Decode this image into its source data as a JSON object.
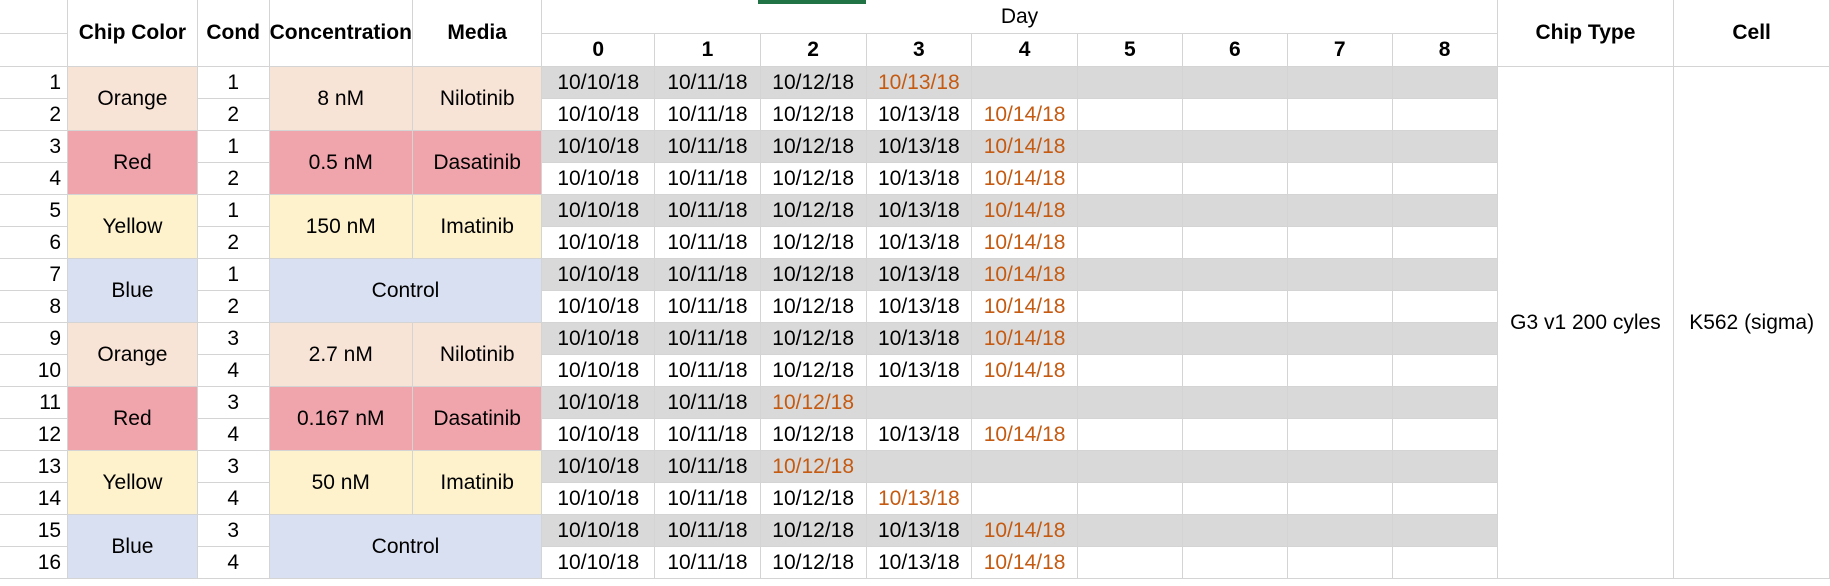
{
  "headers": {
    "chip_color": "Chip Color",
    "cond": "Cond",
    "concentration": "Concentration",
    "media": "Media",
    "day": "Day",
    "day_numbers": [
      "0",
      "1",
      "2",
      "3",
      "4",
      "5",
      "6",
      "7",
      "8"
    ],
    "chip_type": "Chip Type",
    "cell": "Cell"
  },
  "groups": [
    {
      "chip_color": "Orange",
      "color_class": "orange",
      "concentration": "8 nM",
      "media": "Nilotinib",
      "control": false
    },
    {
      "chip_color": "Red",
      "color_class": "red",
      "concentration": "0.5 nM",
      "media": "Dasatinib",
      "control": false
    },
    {
      "chip_color": "Yellow",
      "color_class": "yellow",
      "concentration": "150 nM",
      "media": "Imatinib",
      "control": false
    },
    {
      "chip_color": "Blue",
      "color_class": "blue",
      "concentration": "",
      "media": "Control",
      "control": true
    },
    {
      "chip_color": "Orange",
      "color_class": "orange",
      "concentration": "2.7 nM",
      "media": "Nilotinib",
      "control": false
    },
    {
      "chip_color": "Red",
      "color_class": "red",
      "concentration": "0.167 nM",
      "media": "Dasatinib",
      "control": false
    },
    {
      "chip_color": "Yellow",
      "color_class": "yellow",
      "concentration": "50 nM",
      "media": "Imatinib",
      "control": false
    },
    {
      "chip_color": "Blue",
      "color_class": "blue",
      "concentration": "",
      "media": "Control",
      "control": true
    }
  ],
  "rows": [
    {
      "num": "1",
      "cond": "1",
      "dates": [
        "10/10/18",
        "10/11/18",
        "10/12/18",
        "10/13/18"
      ]
    },
    {
      "num": "2",
      "cond": "2",
      "dates": [
        "10/10/18",
        "10/11/18",
        "10/12/18",
        "10/13/18",
        "10/14/18"
      ]
    },
    {
      "num": "3",
      "cond": "1",
      "dates": [
        "10/10/18",
        "10/11/18",
        "10/12/18",
        "10/13/18",
        "10/14/18"
      ]
    },
    {
      "num": "4",
      "cond": "2",
      "dates": [
        "10/10/18",
        "10/11/18",
        "10/12/18",
        "10/13/18",
        "10/14/18"
      ]
    },
    {
      "num": "5",
      "cond": "1",
      "dates": [
        "10/10/18",
        "10/11/18",
        "10/12/18",
        "10/13/18",
        "10/14/18"
      ]
    },
    {
      "num": "6",
      "cond": "2",
      "dates": [
        "10/10/18",
        "10/11/18",
        "10/12/18",
        "10/13/18",
        "10/14/18"
      ]
    },
    {
      "num": "7",
      "cond": "1",
      "dates": [
        "10/10/18",
        "10/11/18",
        "10/12/18",
        "10/13/18",
        "10/14/18"
      ]
    },
    {
      "num": "8",
      "cond": "2",
      "dates": [
        "10/10/18",
        "10/11/18",
        "10/12/18",
        "10/13/18",
        "10/14/18"
      ]
    },
    {
      "num": "9",
      "cond": "3",
      "dates": [
        "10/10/18",
        "10/11/18",
        "10/12/18",
        "10/13/18",
        "10/14/18"
      ]
    },
    {
      "num": "10",
      "cond": "4",
      "dates": [
        "10/10/18",
        "10/11/18",
        "10/12/18",
        "10/13/18",
        "10/14/18"
      ]
    },
    {
      "num": "11",
      "cond": "3",
      "dates": [
        "10/10/18",
        "10/11/18",
        "10/12/18"
      ]
    },
    {
      "num": "12",
      "cond": "4",
      "dates": [
        "10/10/18",
        "10/11/18",
        "10/12/18",
        "10/13/18",
        "10/14/18"
      ]
    },
    {
      "num": "13",
      "cond": "3",
      "dates": [
        "10/10/18",
        "10/11/18",
        "10/12/18"
      ]
    },
    {
      "num": "14",
      "cond": "4",
      "dates": [
        "10/10/18",
        "10/11/18",
        "10/12/18",
        "10/13/18"
      ]
    },
    {
      "num": "15",
      "cond": "3",
      "dates": [
        "10/10/18",
        "10/11/18",
        "10/12/18",
        "10/13/18",
        "10/14/18"
      ]
    },
    {
      "num": "16",
      "cond": "4",
      "dates": [
        "10/10/18",
        "10/11/18",
        "10/12/18",
        "10/13/18",
        "10/14/18"
      ]
    }
  ],
  "chip_type": "G3 v1 200 cyles",
  "cell": "K562 (sigma)",
  "colors": {
    "last_date": "#c55a11",
    "grey_row": "#d9d9d9",
    "orange": "#f8e3d7",
    "red": "#f0a5ad",
    "yellow": "#fdf2cc",
    "blue": "#d9e0f1",
    "selection": "#217346"
  }
}
